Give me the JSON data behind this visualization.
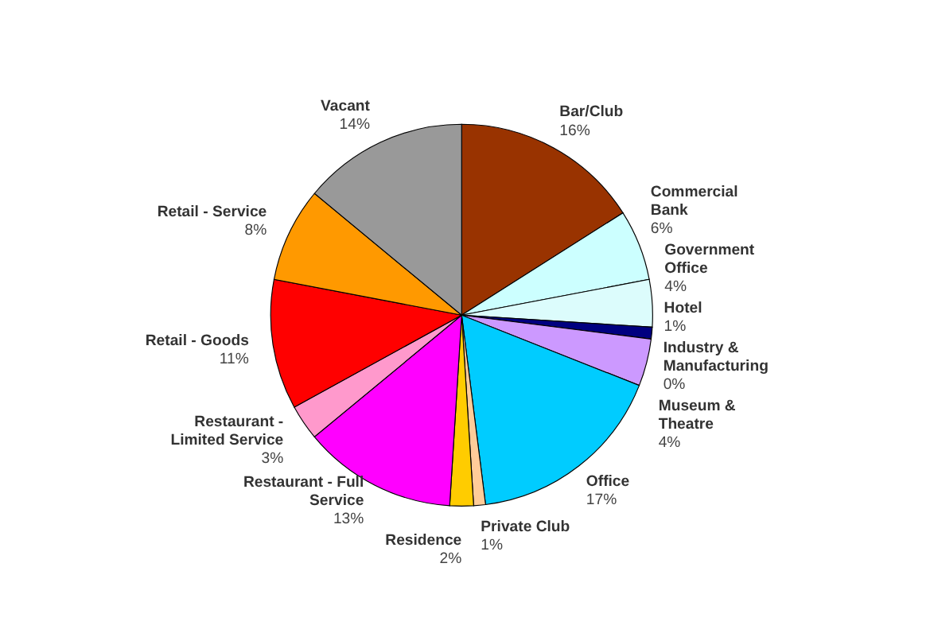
{
  "chart_data": {
    "type": "pie",
    "categories": [
      "Bar/Club",
      "Commercial\nBank",
      "Government\nOffice",
      "Hotel",
      "Industry &\nManufacturing",
      "Museum &\nTheatre",
      "Office",
      "Private Club",
      "Residence",
      "Restaurant - Full\nService",
      "Restaurant -\nLimited Service",
      "Retail - Goods",
      "Retail - Service",
      "Vacant"
    ],
    "values": [
      16,
      6,
      4,
      1,
      0,
      4,
      17,
      1,
      2,
      13,
      3,
      11,
      8,
      14
    ],
    "value_labels": [
      "16%",
      "6%",
      "4%",
      "1%",
      "0%",
      "4%",
      "17%",
      "1%",
      "2%",
      "13%",
      "3%",
      "11%",
      "8%",
      "14%"
    ],
    "colors": [
      "#993300",
      "#ccffff",
      "#dcfcfc",
      "#000080",
      "#ffffcc",
      "#cc99ff",
      "#00ccff",
      "#ffcc99",
      "#ffcc00",
      "#ff00ff",
      "#ff99cc",
      "#ff0000",
      "#ff9900",
      "#999999"
    ]
  }
}
